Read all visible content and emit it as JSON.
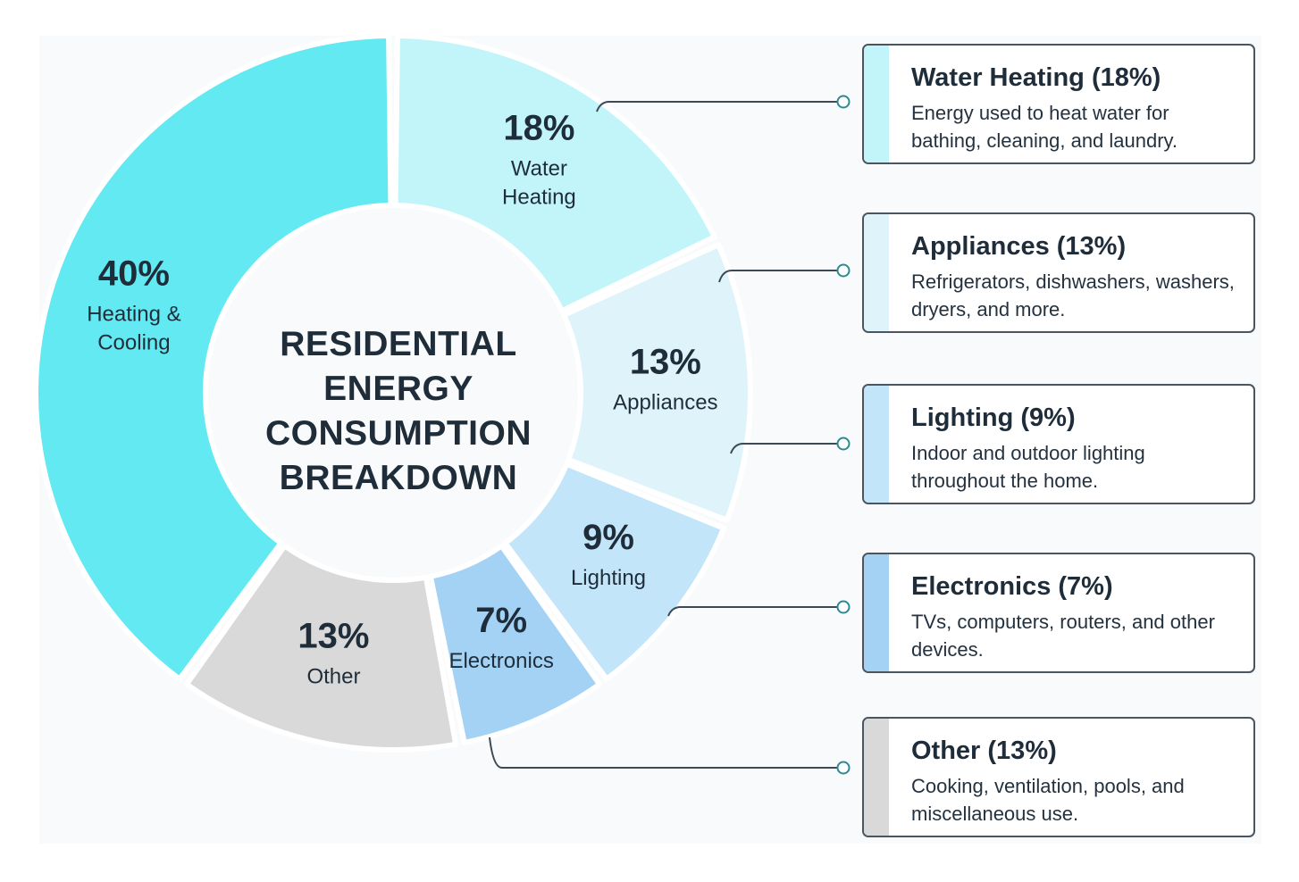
{
  "chart_data": {
    "type": "pie",
    "title_lines": [
      "RESIDENTIAL",
      "ENERGY",
      "CONSUMPTION",
      "BREAKDOWN"
    ],
    "unit": "%",
    "slices": [
      {
        "name": "Water Heating",
        "label_lines": [
          "Water",
          "Heating"
        ],
        "value": 18,
        "value_label": "18%",
        "color": "#c2f5f9"
      },
      {
        "name": "Appliances",
        "label_lines": [
          "Appliances"
        ],
        "value": 13,
        "value_label": "13%",
        "color": "#dff3fb"
      },
      {
        "name": "Lighting",
        "label_lines": [
          "Lighting"
        ],
        "value": 9,
        "value_label": "9%",
        "color": "#c3e5f9"
      },
      {
        "name": "Electronics",
        "label_lines": [
          "Electronics"
        ],
        "value": 7,
        "value_label": "7%",
        "color": "#a3d2f5"
      },
      {
        "name": "Other",
        "label_lines": [
          "Other"
        ],
        "value": 13,
        "value_label": "13%",
        "color": "#d9d9d9"
      },
      {
        "name": "Heating & Cooling",
        "label_lines": [
          "Heating &",
          "Cooling"
        ],
        "value": 40,
        "value_label": "40%",
        "color": "#62e9f1"
      }
    ]
  },
  "legend_cards": [
    {
      "title": "Water Heating (18%)",
      "description": "Energy used to heat water for bathing, cleaning, and laundry.",
      "color": "#c2f5f9"
    },
    {
      "title": "Appliances (13%)",
      "description": "Refrigerators, dishwashers, washers, dryers, and more.",
      "color": "#dff3fb"
    },
    {
      "title": "Lighting (9%)",
      "description": "Indoor and outdoor lighting throughout the home.",
      "color": "#c3e5f9"
    },
    {
      "title": "Electronics (7%)",
      "description": "TVs, computers, routers, and other devices.",
      "color": "#a3d2f5"
    },
    {
      "title": "Other (13%)",
      "description": "Cooking, ventilation, pools, and miscellaneous use.",
      "color": "#d9d9d9"
    }
  ],
  "colors": {
    "connector": "#3d4a55",
    "connector_end": "#2a8a95",
    "text": "#1f2d3a"
  }
}
